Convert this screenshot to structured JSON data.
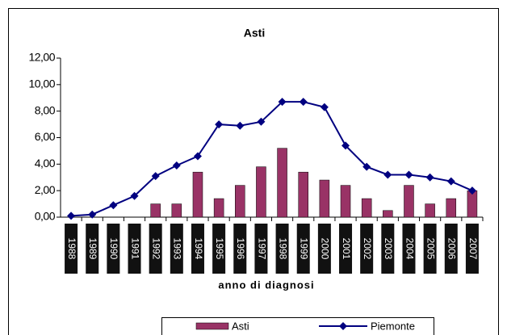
{
  "chart_data": {
    "type": "bar-line",
    "title": "Asti",
    "x_label": "anno di diagnosi",
    "categories": [
      "1988",
      "1989",
      "1990",
      "1991",
      "1992",
      "1993",
      "1994",
      "1995",
      "1996",
      "1997",
      "1998",
      "1999",
      "2000",
      "2001",
      "2002",
      "2003",
      "2004",
      "2005",
      "2006",
      "2007"
    ],
    "series": [
      {
        "name": "Asti",
        "type": "bar",
        "color": "#993366",
        "values": [
          0,
          0,
          0,
          0,
          1.0,
          1.0,
          3.4,
          1.4,
          2.4,
          3.8,
          5.2,
          3.4,
          2.8,
          2.4,
          1.4,
          0.5,
          2.4,
          1.0,
          1.4,
          2.0
        ]
      },
      {
        "name": "Piemonte",
        "type": "line",
        "color": "#000080",
        "values": [
          0.1,
          0.2,
          0.9,
          1.6,
          3.1,
          3.9,
          4.6,
          7.0,
          6.9,
          7.2,
          8.7,
          8.7,
          8.3,
          5.4,
          3.8,
          3.2,
          3.2,
          3.0,
          2.7,
          2.0
        ]
      }
    ],
    "ylim": [
      0,
      12
    ],
    "yticks": [
      {
        "value": 0,
        "label": "0,00"
      },
      {
        "value": 2,
        "label": "2,00"
      },
      {
        "value": 4,
        "label": "4,00"
      },
      {
        "value": 6,
        "label": "6,00"
      },
      {
        "value": 8,
        "label": "8,00"
      },
      {
        "value": 10,
        "label": "10,00"
      },
      {
        "value": 12,
        "label": "12,00"
      }
    ]
  }
}
